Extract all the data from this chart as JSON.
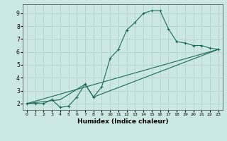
{
  "xlabel": "Humidex (Indice chaleur)",
  "ylabel": "",
  "xlim": [
    -0.5,
    23.5
  ],
  "ylim": [
    1.5,
    9.7
  ],
  "xticks": [
    0,
    1,
    2,
    3,
    4,
    5,
    6,
    7,
    8,
    9,
    10,
    11,
    12,
    13,
    14,
    15,
    16,
    17,
    18,
    19,
    20,
    21,
    22,
    23
  ],
  "yticks": [
    2,
    3,
    4,
    5,
    6,
    7,
    8,
    9
  ],
  "bg_color": "#cce8e4",
  "grid_color": "#b8d4d0",
  "line_color": "#1a6b5a",
  "line1_x": [
    0,
    1,
    2,
    3,
    4,
    5,
    6,
    7,
    8,
    9,
    10,
    11,
    12,
    13,
    14,
    15,
    16,
    17,
    18,
    19,
    20,
    21,
    22,
    23
  ],
  "line1_y": [
    2.0,
    2.0,
    2.0,
    2.3,
    1.7,
    1.8,
    2.5,
    3.5,
    2.5,
    3.3,
    5.5,
    6.2,
    7.7,
    8.3,
    9.0,
    9.2,
    9.2,
    7.8,
    6.8,
    6.7,
    6.5,
    6.5,
    6.3,
    6.2
  ],
  "line2_x": [
    0,
    23
  ],
  "line2_y": [
    2.0,
    6.2
  ],
  "line3_x": [
    0,
    4,
    7,
    8,
    23
  ],
  "line3_y": [
    2.0,
    2.3,
    3.5,
    2.5,
    6.2
  ],
  "marker": "+"
}
